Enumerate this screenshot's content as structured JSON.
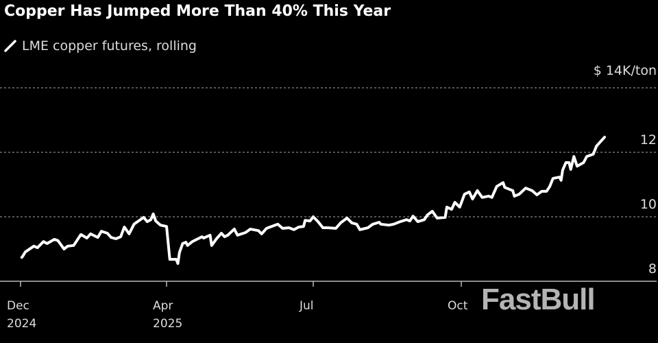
{
  "chart_data": {
    "type": "line",
    "title": "Copper Has Jumped More Than 40% This Year",
    "legend": [
      "LME copper futures, rolling"
    ],
    "legend_placement": "top-left",
    "y_unit_label": "$ 14K/ton",
    "ylim": [
      8,
      14
    ],
    "yticks": [
      8,
      10,
      12,
      14
    ],
    "ytick_labels": [
      "8",
      "10",
      "12",
      "$ 14K/ton"
    ],
    "y_axis_side": "right",
    "grid": "horizontal dotted",
    "xticks": [
      {
        "date": "2024-12-01",
        "label": [
          "Dec",
          "2024"
        ]
      },
      {
        "date": "2025-04-01",
        "label": [
          "Apr",
          "2025"
        ]
      },
      {
        "date": "2025-07-01",
        "label": [
          "Jul"
        ]
      },
      {
        "date": "2025-10-01",
        "label": [
          "Oct"
        ]
      }
    ],
    "line_color": "#ffffff",
    "background": "#000000",
    "series": [
      {
        "name": "LME copper futures, rolling",
        "x": [
          "2024-12-02",
          "2024-12-03",
          "2024-12-05",
          "2024-12-12",
          "2024-12-15",
          "2024-12-20",
          "2024-12-23",
          "2024-12-29",
          "2025-01-01",
          "2025-01-06",
          "2025-01-09",
          "2025-01-14",
          "2025-01-20",
          "2025-01-25",
          "2025-01-28",
          "2025-02-03",
          "2025-02-06",
          "2025-02-11",
          "2025-02-14",
          "2025-02-18",
          "2025-02-22",
          "2025-02-25",
          "2025-03-01",
          "2025-03-05",
          "2025-03-13",
          "2025-03-16",
          "2025-03-19",
          "2025-03-21",
          "2025-03-23",
          "2025-03-27",
          "2025-04-01",
          "2025-04-03",
          "2025-04-07",
          "2025-04-08",
          "2025-04-09",
          "2025-04-11",
          "2025-04-13",
          "2025-04-14",
          "2025-04-17",
          "2025-04-23",
          "2025-04-24",
          "2025-04-28",
          "2025-04-29",
          "2025-05-02",
          "2025-05-05",
          "2025-05-07",
          "2025-05-09",
          "2025-05-13",
          "2025-05-15",
          "2025-05-20",
          "2025-05-23",
          "2025-05-28",
          "2025-05-30",
          "2025-06-02",
          "2025-06-09",
          "2025-06-12",
          "2025-06-16",
          "2025-06-19",
          "2025-06-22",
          "2025-06-25",
          "2025-06-26",
          "2025-06-29",
          "2025-07-01",
          "2025-07-04",
          "2025-07-07",
          "2025-07-10",
          "2025-07-15",
          "2025-07-18",
          "2025-07-22",
          "2025-07-25",
          "2025-07-28",
          "2025-07-30",
          "2025-08-04",
          "2025-08-07",
          "2025-08-11",
          "2025-08-12",
          "2025-08-17",
          "2025-08-20",
          "2025-08-24",
          "2025-08-28",
          "2025-08-30",
          "2025-09-01",
          "2025-09-04",
          "2025-09-08",
          "2025-09-10",
          "2025-09-13",
          "2025-09-16",
          "2025-09-21",
          "2025-09-22",
          "2025-09-25",
          "2025-09-27",
          "2025-09-30",
          "2025-10-03",
          "2025-10-06",
          "2025-10-08",
          "2025-10-11",
          "2025-10-14",
          "2025-10-18",
          "2025-10-20",
          "2025-10-23",
          "2025-10-27",
          "2025-10-28",
          "2025-11-02",
          "2025-11-03",
          "2025-11-06",
          "2025-11-10",
          "2025-11-14",
          "2025-11-17",
          "2025-11-20",
          "2025-11-23",
          "2025-11-25",
          "2025-11-27",
          "2025-12-01",
          "2025-12-02",
          "2025-12-03",
          "2025-12-05",
          "2025-12-07",
          "2025-12-08",
          "2025-12-10",
          "2025-12-12",
          "2025-12-16",
          "2025-12-18",
          "2025-12-22",
          "2025-12-24",
          "2025-12-29"
        ],
        "y": [
          8.74,
          8.79,
          8.91,
          9.09,
          9.04,
          9.23,
          9.17,
          9.3,
          9.26,
          9.0,
          9.09,
          9.11,
          9.45,
          9.34,
          9.47,
          9.36,
          9.55,
          9.49,
          9.36,
          9.32,
          9.38,
          9.68,
          9.47,
          9.77,
          9.98,
          9.85,
          9.91,
          10.09,
          9.87,
          9.74,
          9.7,
          8.68,
          8.68,
          8.55,
          8.89,
          9.17,
          9.21,
          9.11,
          9.23,
          9.38,
          9.34,
          9.43,
          9.11,
          9.32,
          9.49,
          9.38,
          9.43,
          9.62,
          9.43,
          9.51,
          9.62,
          9.57,
          9.47,
          9.64,
          9.77,
          9.64,
          9.66,
          9.6,
          9.68,
          9.7,
          9.89,
          9.87,
          10.0,
          9.85,
          9.66,
          9.66,
          9.64,
          9.81,
          9.96,
          9.81,
          9.77,
          9.6,
          9.66,
          9.77,
          9.83,
          9.77,
          9.74,
          9.77,
          9.85,
          9.91,
          9.87,
          10.02,
          9.85,
          9.91,
          10.06,
          10.17,
          9.96,
          9.98,
          10.3,
          10.23,
          10.45,
          10.3,
          10.7,
          10.77,
          10.55,
          10.81,
          10.6,
          10.64,
          10.6,
          10.94,
          11.06,
          10.91,
          10.81,
          10.64,
          10.7,
          10.89,
          10.81,
          10.68,
          10.79,
          10.79,
          10.94,
          11.19,
          11.23,
          11.13,
          11.45,
          11.68,
          11.68,
          11.47,
          11.87,
          11.57,
          11.68,
          11.87,
          11.94,
          12.19,
          12.47
        ]
      }
    ]
  },
  "watermark": "FastBull"
}
